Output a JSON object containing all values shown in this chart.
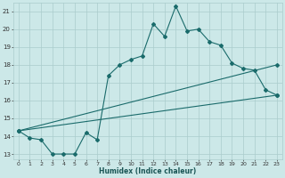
{
  "xlabel": "Humidex (Indice chaleur)",
  "background_color": "#cce8e8",
  "grid_color": "#aacccc",
  "line_color": "#1a6b6b",
  "xlim": [
    0,
    23
  ],
  "ylim": [
    12.7,
    21.5
  ],
  "xticks": [
    0,
    1,
    2,
    3,
    4,
    5,
    6,
    7,
    8,
    9,
    10,
    11,
    12,
    13,
    14,
    15,
    16,
    17,
    18,
    19,
    20,
    21,
    22,
    23
  ],
  "yticks": [
    13,
    14,
    15,
    16,
    17,
    18,
    19,
    20,
    21
  ],
  "series_main": [
    [
      0,
      14.3
    ],
    [
      1,
      13.9
    ],
    [
      2,
      13.8
    ],
    [
      3,
      13.0
    ],
    [
      4,
      13.0
    ],
    [
      5,
      13.0
    ],
    [
      6,
      14.2
    ],
    [
      7,
      13.8
    ],
    [
      8,
      17.4
    ],
    [
      9,
      18.0
    ],
    [
      10,
      18.3
    ],
    [
      11,
      18.5
    ],
    [
      12,
      20.3
    ],
    [
      13,
      19.6
    ],
    [
      14,
      21.3
    ],
    [
      15,
      19.9
    ],
    [
      16,
      20.0
    ],
    [
      17,
      19.3
    ],
    [
      18,
      19.1
    ],
    [
      19,
      18.1
    ],
    [
      20,
      17.8
    ],
    [
      21,
      17.7
    ],
    [
      22,
      16.6
    ],
    [
      23,
      16.3
    ]
  ],
  "series_line1": [
    [
      0,
      14.3
    ],
    [
      23,
      18.0
    ]
  ],
  "series_line2": [
    [
      0,
      14.3
    ],
    [
      23,
      16.3
    ]
  ]
}
